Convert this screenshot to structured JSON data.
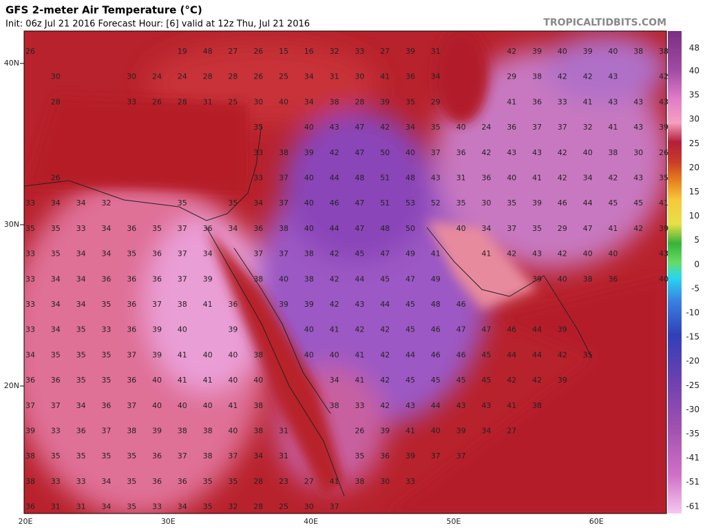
{
  "header": {
    "title": "GFS 2-meter Air Temperature (°C)",
    "subtitle": "Init: 06z Jul 21 2016   Forecast Hour: [6]   valid at 12z Thu, Jul 21 2016",
    "site": "TROPICALTIDBITS.COM"
  },
  "map": {
    "lat_labels": [
      "40N",
      "30N",
      "20N"
    ],
    "lon_labels": [
      "20E",
      "30E",
      "40E",
      "50E",
      "60E"
    ],
    "temperature_grid": [
      [
        26,
        null,
        null,
        null,
        null,
        null,
        19,
        48,
        27,
        26,
        15,
        16,
        32,
        33,
        27,
        39,
        31,
        null,
        null,
        42,
        39,
        40,
        39,
        40,
        38,
        38
      ],
      [
        null,
        30,
        null,
        null,
        30,
        24,
        24,
        28,
        28,
        26,
        25,
        34,
        31,
        30,
        41,
        36,
        34,
        null,
        null,
        29,
        38,
        42,
        42,
        43,
        null,
        42
      ],
      [
        null,
        28,
        null,
        null,
        33,
        26,
        28,
        31,
        25,
        30,
        40,
        34,
        38,
        28,
        39,
        35,
        29,
        null,
        null,
        41,
        36,
        33,
        41,
        43,
        43,
        43
      ],
      [
        null,
        null,
        null,
        null,
        null,
        null,
        null,
        null,
        null,
        35,
        null,
        40,
        43,
        47,
        42,
        34,
        35,
        40,
        24,
        36,
        37,
        37,
        32,
        41,
        43,
        39
      ],
      [
        null,
        null,
        null,
        null,
        null,
        null,
        null,
        null,
        null,
        33,
        38,
        39,
        42,
        47,
        50,
        40,
        37,
        36,
        42,
        43,
        43,
        42,
        40,
        38,
        30,
        26
      ],
      [
        null,
        26,
        null,
        null,
        null,
        null,
        null,
        null,
        null,
        33,
        37,
        40,
        44,
        48,
        51,
        48,
        43,
        31,
        36,
        40,
        41,
        42,
        34,
        42,
        43,
        35
      ],
      [
        33,
        34,
        34,
        32,
        null,
        null,
        35,
        null,
        35,
        34,
        37,
        40,
        46,
        47,
        51,
        53,
        52,
        35,
        30,
        35,
        39,
        46,
        44,
        45,
        45,
        41
      ],
      [
        35,
        35,
        33,
        34,
        36,
        35,
        37,
        36,
        34,
        36,
        38,
        40,
        44,
        47,
        48,
        50,
        null,
        40,
        34,
        37,
        35,
        29,
        47,
        41,
        42,
        39
      ],
      [
        33,
        35,
        34,
        34,
        35,
        36,
        37,
        34,
        null,
        37,
        37,
        38,
        42,
        45,
        47,
        49,
        41,
        null,
        41,
        42,
        43,
        42,
        40,
        40,
        null,
        43
      ],
      [
        33,
        34,
        34,
        36,
        36,
        36,
        37,
        39,
        null,
        38,
        40,
        38,
        42,
        44,
        45,
        47,
        49,
        null,
        null,
        null,
        39,
        40,
        38,
        36,
        null,
        40
      ],
      [
        33,
        34,
        34,
        35,
        36,
        37,
        38,
        41,
        36,
        null,
        39,
        39,
        42,
        43,
        44,
        45,
        48,
        46,
        null,
        null,
        null,
        null,
        null,
        null,
        null,
        null
      ],
      [
        33,
        34,
        35,
        33,
        36,
        39,
        40,
        null,
        39,
        null,
        null,
        40,
        41,
        42,
        42,
        45,
        46,
        47,
        47,
        46,
        44,
        39,
        null,
        null,
        null,
        null
      ],
      [
        34,
        35,
        35,
        35,
        37,
        39,
        41,
        40,
        40,
        38,
        null,
        40,
        40,
        41,
        42,
        44,
        46,
        46,
        45,
        44,
        44,
        42,
        35,
        null,
        null,
        null
      ],
      [
        36,
        36,
        35,
        35,
        36,
        40,
        41,
        41,
        40,
        40,
        null,
        null,
        34,
        41,
        42,
        45,
        45,
        45,
        45,
        42,
        42,
        39,
        null,
        null,
        null,
        null
      ],
      [
        37,
        37,
        34,
        36,
        37,
        40,
        40,
        40,
        41,
        38,
        null,
        null,
        38,
        33,
        42,
        43,
        44,
        43,
        43,
        41,
        38,
        null,
        null,
        null,
        null,
        null
      ],
      [
        39,
        33,
        36,
        37,
        38,
        39,
        38,
        38,
        40,
        38,
        31,
        null,
        null,
        26,
        39,
        41,
        40,
        39,
        34,
        27,
        null,
        null,
        null,
        null,
        null,
        null
      ],
      [
        38,
        35,
        35,
        35,
        35,
        36,
        37,
        38,
        37,
        34,
        31,
        null,
        null,
        35,
        36,
        39,
        37,
        37,
        null,
        null,
        null,
        null,
        null,
        null,
        null,
        null
      ],
      [
        38,
        33,
        33,
        34,
        35,
        36,
        36,
        35,
        35,
        28,
        23,
        27,
        41,
        38,
        30,
        33,
        null,
        null,
        null,
        null,
        null,
        null,
        null,
        null,
        null,
        null
      ],
      [
        36,
        31,
        31,
        34,
        35,
        33,
        34,
        35,
        32,
        28,
        25,
        30,
        37,
        null,
        null,
        null,
        null,
        null,
        null,
        null,
        null,
        null,
        null,
        null,
        null,
        null
      ]
    ]
  },
  "colorbar": {
    "labels": [
      48,
      40,
      35,
      30,
      25,
      20,
      15,
      10,
      5,
      0,
      -5,
      -10,
      -15,
      -20,
      -25,
      -30,
      -35,
      -41,
      -51,
      -61
    ]
  }
}
